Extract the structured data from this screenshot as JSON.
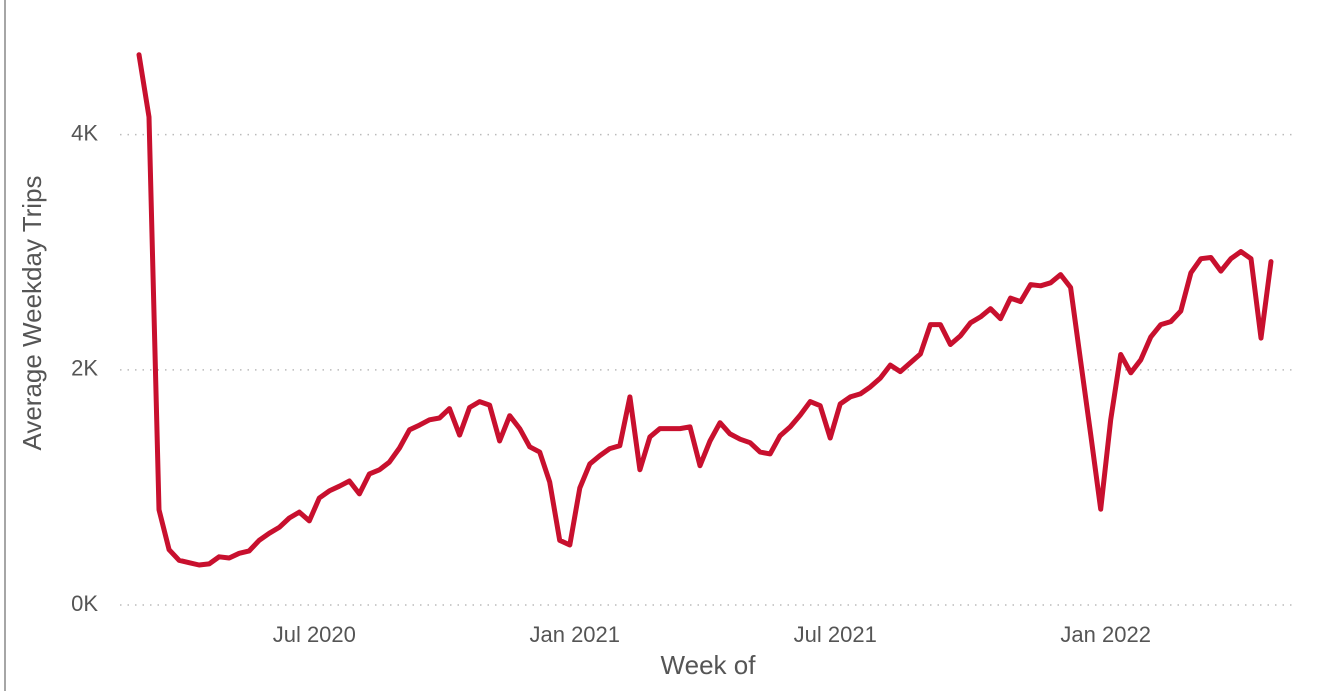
{
  "chart_data": {
    "type": "line",
    "xlabel": "Week of",
    "ylabel": "Average Weekday Trips",
    "categories": [
      null,
      null,
      null,
      null,
      null,
      null,
      null,
      null,
      null,
      null,
      null,
      null,
      null,
      null,
      null,
      null,
      null,
      "Jul 2020",
      null,
      null,
      null,
      null,
      null,
      null,
      null,
      null,
      null,
      null,
      null,
      null,
      null,
      null,
      null,
      null,
      null,
      null,
      null,
      null,
      null,
      null,
      null,
      null,
      null,
      "Jan 2021",
      null,
      null,
      null,
      null,
      null,
      null,
      null,
      null,
      null,
      null,
      null,
      null,
      null,
      null,
      null,
      null,
      null,
      null,
      null,
      null,
      null,
      null,
      null,
      null,
      null,
      "Jul 2021",
      null,
      null,
      null,
      null,
      null,
      null,
      null,
      null,
      null,
      null,
      null,
      null,
      null,
      null,
      null,
      null,
      null,
      null,
      null,
      null,
      null,
      null,
      null,
      null,
      null,
      null,
      "Jan 2022",
      null,
      null,
      null,
      null,
      null,
      null,
      null,
      null,
      null,
      null,
      null,
      null,
      null,
      null,
      null,
      null,
      null
    ],
    "series": [
      {
        "name": "Average Weekday Trips",
        "color": "#c8102e",
        "values": [
          4680,
          4150,
          810,
          470,
          380,
          360,
          340,
          350,
          410,
          400,
          440,
          460,
          550,
          610,
          660,
          740,
          790,
          715,
          910,
          970,
          1010,
          1055,
          945,
          1115,
          1150,
          1215,
          1335,
          1490,
          1530,
          1575,
          1590,
          1670,
          1445,
          1680,
          1730,
          1700,
          1395,
          1610,
          1500,
          1345,
          1300,
          1045,
          550,
          510,
          995,
          1200,
          1270,
          1330,
          1355,
          1770,
          1150,
          1430,
          1500,
          1500,
          1500,
          1515,
          1185,
          1395,
          1550,
          1455,
          1410,
          1380,
          1300,
          1285,
          1440,
          1515,
          1615,
          1730,
          1695,
          1420,
          1710,
          1770,
          1795,
          1855,
          1930,
          2040,
          1985,
          2060,
          2135,
          2385,
          2385,
          2215,
          2290,
          2400,
          2450,
          2520,
          2435,
          2610,
          2580,
          2725,
          2715,
          2740,
          2810,
          2700,
          2070,
          1450,
          815,
          1575,
          2130,
          1975,
          2085,
          2280,
          2385,
          2410,
          2500,
          2825,
          2945,
          2955,
          2840,
          2945,
          3005,
          2945,
          2270,
          2920
        ]
      }
    ],
    "ylim": [
      -170,
      5060
    ],
    "yticks": [
      {
        "value": 0,
        "label": "0K"
      },
      {
        "value": 2000,
        "label": "2K"
      },
      {
        "value": 4000,
        "label": "4K"
      }
    ],
    "grid": true
  }
}
